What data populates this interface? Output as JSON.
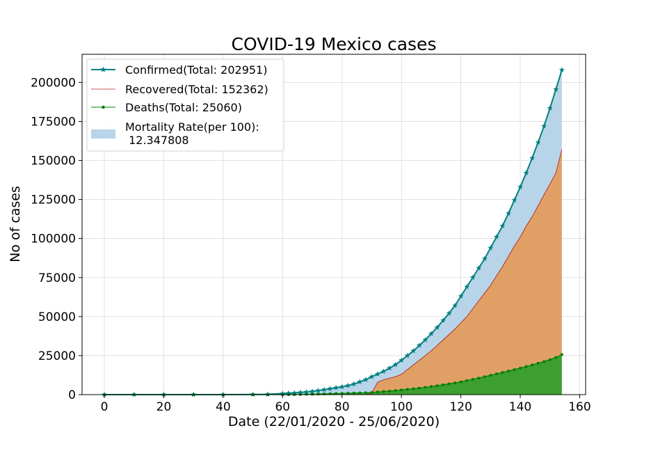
{
  "chart_data": {
    "type": "line",
    "title": "COVID-19 Mexico cases",
    "xlabel": "Date (22/01/2020 - 25/06/2020)",
    "ylabel": "No of cases",
    "xlim": [
      -7.5,
      162
    ],
    "ylim": [
      0,
      218000
    ],
    "xticks": [
      0,
      20,
      40,
      60,
      80,
      100,
      120,
      140,
      160
    ],
    "yticks": [
      0,
      25000,
      50000,
      75000,
      100000,
      125000,
      150000,
      175000,
      200000
    ],
    "grid": true,
    "legend_position": "upper-left",
    "x": [
      0,
      10,
      20,
      30,
      40,
      50,
      55,
      60,
      62,
      64,
      66,
      68,
      70,
      72,
      74,
      76,
      78,
      80,
      82,
      84,
      86,
      88,
      90,
      92,
      94,
      96,
      98,
      100,
      102,
      104,
      106,
      108,
      110,
      112,
      114,
      116,
      118,
      120,
      122,
      124,
      126,
      128,
      130,
      132,
      134,
      136,
      138,
      140,
      142,
      144,
      146,
      148,
      150,
      152,
      154
    ],
    "series": [
      {
        "name": "Confirmed(Total: 202951)",
        "color": "#008080",
        "marker": "star",
        "values": [
          0,
          0,
          0,
          0,
          0,
          100,
          200,
          700,
          900,
          1100,
          1400,
          1700,
          2100,
          2600,
          3200,
          3800,
          4400,
          5000,
          5800,
          6800,
          8200,
          9600,
          11500,
          13200,
          14900,
          17000,
          19200,
          22000,
          25000,
          28000,
          31500,
          35000,
          39000,
          43000,
          47500,
          52000,
          57000,
          63000,
          69000,
          75000,
          81000,
          87000,
          94000,
          101000,
          108000,
          116000,
          124500,
          133000,
          142000,
          151500,
          161500,
          172000,
          183500,
          195500,
          208000
        ]
      },
      {
        "name": "Recovered(Total: 152362)",
        "color": "#b22222",
        "marker": "none",
        "values": [
          0,
          0,
          0,
          0,
          0,
          0,
          0,
          0,
          0,
          0,
          0,
          0,
          0,
          0,
          0,
          0,
          0,
          0,
          0,
          0,
          0,
          0,
          1000,
          8000,
          9500,
          10500,
          11500,
          13000,
          16000,
          19000,
          22000,
          25000,
          28000,
          31500,
          35000,
          38500,
          42000,
          46000,
          50000,
          55000,
          60000,
          65000,
          70000,
          76000,
          82000,
          88500,
          95000,
          101000,
          108000,
          114000,
          121000,
          128000,
          135000,
          142000,
          157000
        ]
      },
      {
        "name": "Deaths(Total: 25060)",
        "color": "#008000",
        "marker": "dot",
        "values": [
          0,
          0,
          0,
          0,
          0,
          0,
          0,
          0,
          0,
          0,
          100,
          200,
          300,
          400,
          500,
          600,
          700,
          800,
          900,
          1000,
          1100,
          1200,
          1400,
          1700,
          2000,
          2300,
          2600,
          3000,
          3400,
          3800,
          4200,
          4700,
          5200,
          5700,
          6300,
          6900,
          7500,
          8200,
          9000,
          9800,
          10600,
          11500,
          12400,
          13300,
          14200,
          15100,
          16000,
          17000,
          18000,
          19000,
          20100,
          21200,
          22400,
          23800,
          25700
        ]
      }
    ],
    "fill_label": "Mortality Rate(per 100):\n 12.347808",
    "fill_colors": {
      "confirmed_to_recovered": "#b8d4e8",
      "recovered_to_deaths": "#e0a065",
      "deaths_to_zero": "#3c9f30"
    }
  }
}
